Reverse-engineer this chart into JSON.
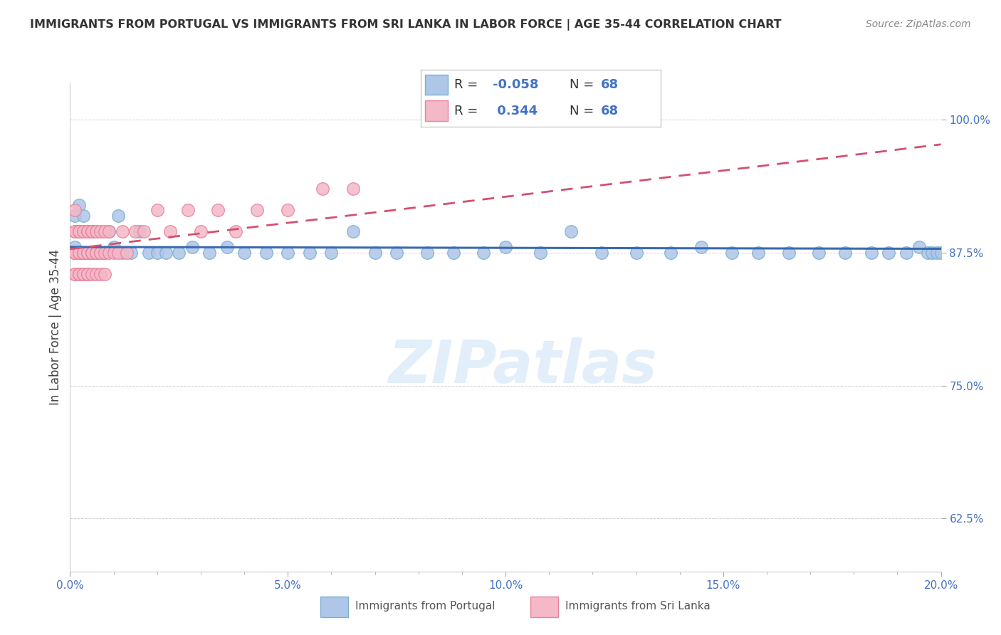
{
  "title": "IMMIGRANTS FROM PORTUGAL VS IMMIGRANTS FROM SRI LANKA IN LABOR FORCE | AGE 35-44 CORRELATION CHART",
  "source": "Source: ZipAtlas.com",
  "ylabel": "In Labor Force | Age 35-44",
  "x_min": 0.0,
  "x_max": 0.2,
  "y_min": 0.575,
  "y_max": 1.035,
  "x_ticks": [
    0.0,
    0.05,
    0.1,
    0.15,
    0.2
  ],
  "x_tick_labels": [
    "0.0%",
    "5.0%",
    "10.0%",
    "15.0%",
    "20.0%"
  ],
  "y_ticks": [
    0.625,
    0.75,
    0.875,
    1.0
  ],
  "y_tick_labels": [
    "62.5%",
    "75.0%",
    "87.5%",
    "100.0%"
  ],
  "portugal_color": "#aec6e8",
  "srilanka_color": "#f4b8c8",
  "portugal_edge": "#7bafd4",
  "srilanka_edge": "#e8829a",
  "trend_portugal_color": "#3a6ab0",
  "trend_srilanka_color": "#d45070",
  "R_portugal": -0.058,
  "R_srilanka": 0.344,
  "N": 68,
  "portugal_x": [
    0.001,
    0.001,
    0.001,
    0.001,
    0.001,
    0.002,
    0.002,
    0.002,
    0.002,
    0.002,
    0.003,
    0.003,
    0.003,
    0.003,
    0.004,
    0.004,
    0.004,
    0.004,
    0.005,
    0.005,
    0.005,
    0.006,
    0.007,
    0.008,
    0.009,
    0.01,
    0.011,
    0.012,
    0.014,
    0.016,
    0.018,
    0.02,
    0.022,
    0.025,
    0.028,
    0.032,
    0.036,
    0.04,
    0.045,
    0.05,
    0.055,
    0.06,
    0.065,
    0.07,
    0.075,
    0.082,
    0.088,
    0.095,
    0.1,
    0.108,
    0.115,
    0.122,
    0.13,
    0.138,
    0.145,
    0.152,
    0.158,
    0.165,
    0.172,
    0.178,
    0.184,
    0.188,
    0.192,
    0.195,
    0.197,
    0.198,
    0.199,
    0.2
  ],
  "portugal_y": [
    0.875,
    0.91,
    0.875,
    0.88,
    0.875,
    0.875,
    0.92,
    0.875,
    0.895,
    0.875,
    0.875,
    0.91,
    0.875,
    0.875,
    0.875,
    0.895,
    0.875,
    0.875,
    0.875,
    0.895,
    0.875,
    0.875,
    0.875,
    0.875,
    0.895,
    0.88,
    0.91,
    0.875,
    0.875,
    0.895,
    0.875,
    0.875,
    0.875,
    0.875,
    0.88,
    0.875,
    0.88,
    0.875,
    0.875,
    0.875,
    0.875,
    0.875,
    0.895,
    0.875,
    0.875,
    0.875,
    0.875,
    0.875,
    0.88,
    0.875,
    0.895,
    0.875,
    0.875,
    0.875,
    0.88,
    0.875,
    0.875,
    0.875,
    0.875,
    0.875,
    0.875,
    0.875,
    0.875,
    0.88,
    0.875,
    0.875,
    0.875,
    0.875
  ],
  "srilanka_x": [
    0.001,
    0.001,
    0.001,
    0.001,
    0.001,
    0.001,
    0.001,
    0.001,
    0.001,
    0.002,
    0.002,
    0.002,
    0.002,
    0.002,
    0.002,
    0.002,
    0.002,
    0.003,
    0.003,
    0.003,
    0.003,
    0.003,
    0.003,
    0.003,
    0.003,
    0.004,
    0.004,
    0.004,
    0.004,
    0.004,
    0.004,
    0.004,
    0.005,
    0.005,
    0.005,
    0.005,
    0.005,
    0.005,
    0.006,
    0.006,
    0.006,
    0.006,
    0.006,
    0.007,
    0.007,
    0.007,
    0.007,
    0.008,
    0.008,
    0.008,
    0.009,
    0.009,
    0.01,
    0.011,
    0.012,
    0.013,
    0.015,
    0.017,
    0.02,
    0.023,
    0.027,
    0.03,
    0.034,
    0.038,
    0.043,
    0.05,
    0.058,
    0.065
  ],
  "srilanka_y": [
    0.875,
    0.895,
    0.875,
    0.855,
    0.875,
    0.895,
    0.915,
    0.875,
    0.855,
    0.895,
    0.875,
    0.855,
    0.875,
    0.895,
    0.855,
    0.875,
    0.895,
    0.875,
    0.895,
    0.855,
    0.875,
    0.895,
    0.875,
    0.855,
    0.875,
    0.895,
    0.875,
    0.855,
    0.875,
    0.895,
    0.875,
    0.855,
    0.895,
    0.875,
    0.855,
    0.875,
    0.895,
    0.875,
    0.895,
    0.875,
    0.855,
    0.875,
    0.895,
    0.875,
    0.895,
    0.855,
    0.875,
    0.875,
    0.895,
    0.855,
    0.875,
    0.895,
    0.875,
    0.875,
    0.895,
    0.875,
    0.895,
    0.895,
    0.915,
    0.895,
    0.915,
    0.895,
    0.915,
    0.895,
    0.915,
    0.915,
    0.935,
    0.935
  ]
}
